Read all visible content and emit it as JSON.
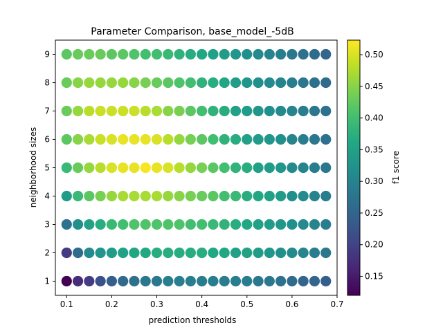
{
  "chart_data": {
    "type": "scatter",
    "title": "Parameter Comparison, base_model_-5dB",
    "xlabel": "prediction thresholds",
    "ylabel": "neighborhood sizes",
    "xlim": [
      0.075,
      0.7
    ],
    "ylim": [
      0.5,
      9.5
    ],
    "xticks": [
      "0.1",
      "0.2",
      "0.3",
      "0.4",
      "0.5",
      "0.6",
      "0.7"
    ],
    "yticks": [
      "1",
      "2",
      "3",
      "4",
      "5",
      "6",
      "7",
      "8",
      "9"
    ],
    "x": [
      0.1,
      0.125,
      0.15,
      0.175,
      0.2,
      0.225,
      0.25,
      0.275,
      0.3,
      0.325,
      0.35,
      0.375,
      0.4,
      0.425,
      0.45,
      0.475,
      0.5,
      0.525,
      0.55,
      0.575,
      0.6,
      0.625,
      0.65,
      0.675
    ],
    "y": [
      1,
      2,
      3,
      4,
      5,
      6,
      7,
      8,
      9
    ],
    "values": [
      [
        0.12,
        0.17,
        0.19,
        0.22,
        0.24,
        0.26,
        0.27,
        0.28,
        0.28,
        0.29,
        0.29,
        0.29,
        0.29,
        0.29,
        0.29,
        0.29,
        0.29,
        0.28,
        0.28,
        0.27,
        0.26,
        0.25,
        0.25,
        0.24
      ],
      [
        0.19,
        0.26,
        0.31,
        0.33,
        0.34,
        0.35,
        0.36,
        0.36,
        0.37,
        0.37,
        0.37,
        0.37,
        0.37,
        0.36,
        0.36,
        0.35,
        0.35,
        0.34,
        0.33,
        0.32,
        0.31,
        0.3,
        0.29,
        0.28
      ],
      [
        0.27,
        0.32,
        0.35,
        0.37,
        0.39,
        0.4,
        0.41,
        0.41,
        0.41,
        0.41,
        0.41,
        0.4,
        0.4,
        0.39,
        0.38,
        0.37,
        0.36,
        0.35,
        0.34,
        0.33,
        0.32,
        0.31,
        0.3,
        0.29
      ],
      [
        0.34,
        0.39,
        0.42,
        0.44,
        0.46,
        0.47,
        0.47,
        0.47,
        0.47,
        0.46,
        0.45,
        0.44,
        0.43,
        0.42,
        0.4,
        0.39,
        0.37,
        0.36,
        0.35,
        0.34,
        0.32,
        0.31,
        0.3,
        0.29
      ],
      [
        0.39,
        0.43,
        0.46,
        0.48,
        0.5,
        0.51,
        0.51,
        0.52,
        0.51,
        0.5,
        0.48,
        0.46,
        0.44,
        0.42,
        0.4,
        0.38,
        0.37,
        0.35,
        0.34,
        0.33,
        0.31,
        0.3,
        0.29,
        0.28
      ],
      [
        0.42,
        0.45,
        0.47,
        0.49,
        0.5,
        0.51,
        0.51,
        0.51,
        0.5,
        0.48,
        0.46,
        0.44,
        0.42,
        0.4,
        0.38,
        0.37,
        0.35,
        0.34,
        0.33,
        0.32,
        0.3,
        0.29,
        0.28,
        0.27
      ],
      [
        0.43,
        0.46,
        0.48,
        0.49,
        0.49,
        0.49,
        0.49,
        0.48,
        0.47,
        0.45,
        0.44,
        0.42,
        0.4,
        0.38,
        0.37,
        0.35,
        0.34,
        0.33,
        0.32,
        0.31,
        0.3,
        0.29,
        0.28,
        0.27
      ],
      [
        0.43,
        0.45,
        0.46,
        0.46,
        0.46,
        0.46,
        0.45,
        0.44,
        0.43,
        0.42,
        0.41,
        0.4,
        0.38,
        0.37,
        0.36,
        0.34,
        0.33,
        0.32,
        0.31,
        0.3,
        0.29,
        0.28,
        0.27,
        0.26
      ],
      [
        0.42,
        0.43,
        0.43,
        0.43,
        0.42,
        0.42,
        0.41,
        0.4,
        0.4,
        0.39,
        0.38,
        0.37,
        0.36,
        0.35,
        0.34,
        0.33,
        0.32,
        0.31,
        0.3,
        0.29,
        0.28,
        0.27,
        0.26,
        0.25
      ]
    ],
    "colorbar": {
      "label": "f1 score",
      "range": [
        0.12,
        0.523
      ],
      "ticks": [
        "0.15",
        "0.20",
        "0.25",
        "0.30",
        "0.35",
        "0.40",
        "0.45",
        "0.50"
      ],
      "colormap": "viridis"
    }
  }
}
